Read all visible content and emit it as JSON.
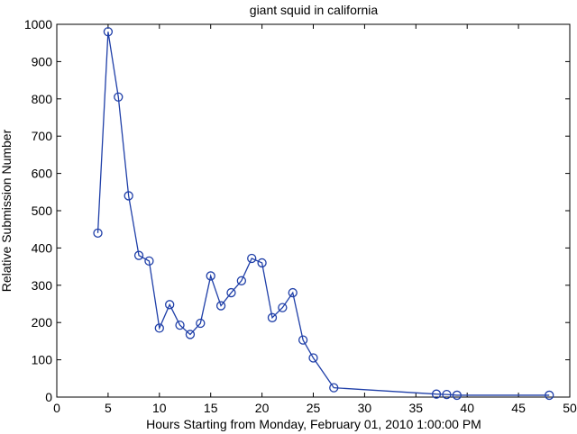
{
  "chart_data": {
    "type": "line",
    "title": "giant squid in california",
    "xlabel": "Hours Starting from Monday, February 01, 2010 1:00:00 PM",
    "ylabel": "Relative Submission Number",
    "xlim": [
      0,
      50
    ],
    "ylim": [
      0,
      1000
    ],
    "xticks": [
      0,
      5,
      10,
      15,
      20,
      25,
      30,
      35,
      40,
      45,
      50
    ],
    "yticks": [
      0,
      100,
      200,
      300,
      400,
      500,
      600,
      700,
      800,
      900,
      1000
    ],
    "grid": false,
    "line_color": "#1f3fa8",
    "marker": "circle",
    "series": [
      {
        "x": [
          4,
          5,
          6,
          7,
          8,
          9,
          10,
          11,
          12,
          13,
          14,
          15,
          16,
          17,
          18,
          19,
          20,
          21,
          22,
          23,
          24,
          25,
          27,
          37,
          38,
          39,
          48
        ],
        "y": [
          440,
          980,
          805,
          540,
          380,
          365,
          185,
          248,
          193,
          168,
          198,
          325,
          245,
          280,
          312,
          372,
          360,
          213,
          240,
          280,
          153,
          105,
          25,
          8,
          7,
          5,
          5
        ]
      }
    ]
  }
}
